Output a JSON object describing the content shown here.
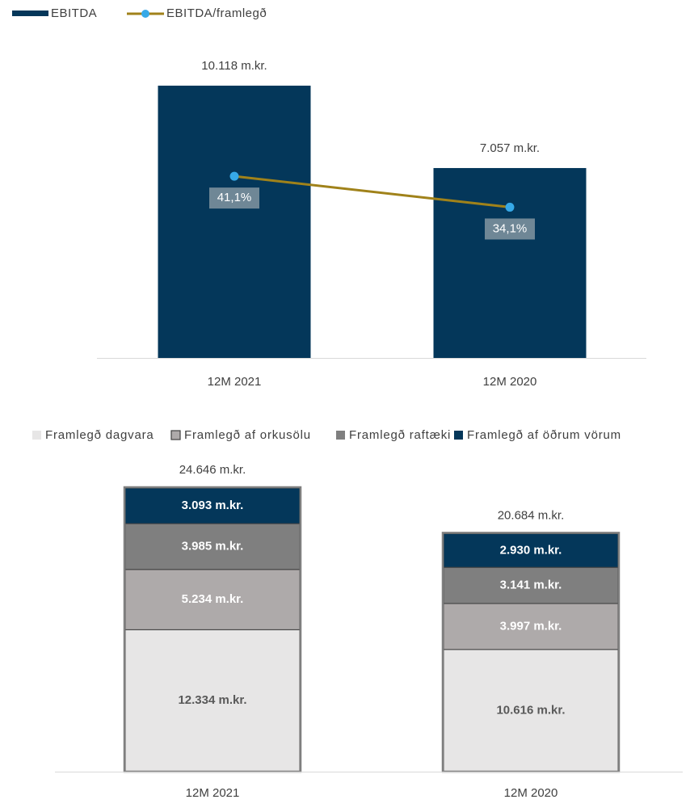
{
  "chart_data": [
    {
      "type": "bar",
      "categories": [
        "12M 2021",
        "12M 2020"
      ],
      "series": [
        {
          "name": "EBITDA",
          "kind": "bar",
          "values": [
            10118,
            7057
          ],
          "labels": [
            "10.118 m.kr.",
            "7.057 m.kr."
          ],
          "color": "#04375a"
        },
        {
          "name": "EBITDA/framlegð",
          "kind": "line",
          "values": [
            41.1,
            34.1
          ],
          "labels": [
            "41,1%",
            "34,1%"
          ],
          "color": "#a0821a",
          "marker_color": "#36a9e8"
        }
      ],
      "ylim": [
        0,
        11500
      ],
      "line_ylim": [
        0,
        70
      ],
      "legend_position": "top-left",
      "grid": false
    },
    {
      "type": "bar",
      "stacked": true,
      "categories": [
        "12M 2021",
        "12M 2020"
      ],
      "totals": [
        24646,
        20684
      ],
      "total_labels": [
        "24.646 m.kr.",
        "20.684 m.kr."
      ],
      "series": [
        {
          "name": "Framlegð dagvara",
          "values": [
            12334,
            10616
          ],
          "labels": [
            "12.334 m.kr.",
            "10.616 m.kr."
          ],
          "color": "#e7e6e6",
          "text_color": "#595959"
        },
        {
          "name": "Framlegð af orkusölu",
          "values": [
            5234,
            3997
          ],
          "labels": [
            "5.234 m.kr.",
            "3.997 m.kr."
          ],
          "color": "#aeaaaa",
          "text_color": "#ffffff"
        },
        {
          "name": "Framlegð raftæki",
          "values": [
            3985,
            3141
          ],
          "labels": [
            "3.985 m.kr.",
            "3.141 m.kr."
          ],
          "color": "#7f7f7f",
          "text_color": "#ffffff"
        },
        {
          "name": "Framlegð af öðrum vörum",
          "values": [
            3093,
            2930
          ],
          "labels": [
            "3.093 m.kr.",
            "2.930 m.kr."
          ],
          "color": "#04375a",
          "text_color": "#ffffff"
        }
      ],
      "ylim": [
        0,
        28000
      ],
      "legend_position": "top",
      "grid": false
    }
  ]
}
